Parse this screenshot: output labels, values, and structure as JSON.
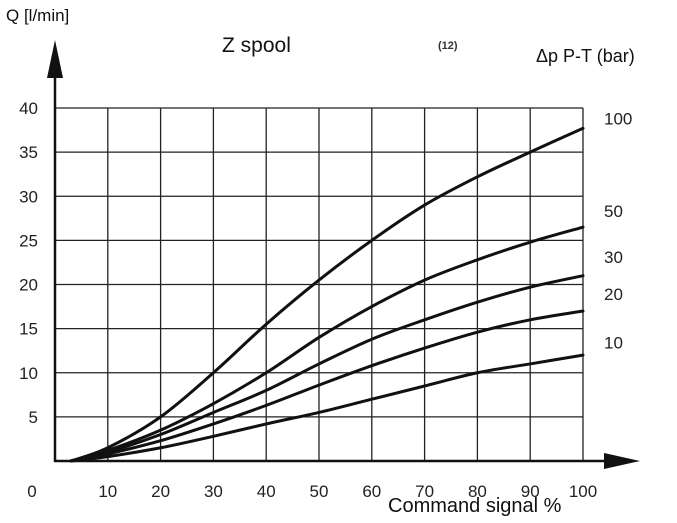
{
  "chart_data": {
    "type": "line",
    "title": "Z spool",
    "figure_number": "(12)",
    "xlabel": "Command signal %",
    "ylabel": "Q [l/min]",
    "legend_title": "Δp P-T (bar)",
    "xlim": [
      0,
      100
    ],
    "ylim": [
      0,
      40
    ],
    "grid": true,
    "x_ticks": [
      "0",
      "10",
      "20",
      "30",
      "40",
      "50",
      "60",
      "70",
      "80",
      "90",
      "100"
    ],
    "y_ticks": [
      "5",
      "10",
      "15",
      "20",
      "25",
      "30",
      "35",
      "40"
    ],
    "series": [
      {
        "name": "100",
        "x": [
          3,
          10,
          20,
          30,
          40,
          50,
          60,
          70,
          80,
          90,
          100
        ],
        "y": [
          0,
          1.5,
          5,
          10,
          15.5,
          20.5,
          25,
          29,
          32.2,
          35,
          37.7
        ]
      },
      {
        "name": "50",
        "x": [
          3,
          10,
          20,
          30,
          40,
          50,
          60,
          70,
          80,
          90,
          100
        ],
        "y": [
          0,
          1.2,
          3.5,
          6.5,
          10,
          14,
          17.5,
          20.5,
          22.8,
          24.8,
          26.5
        ]
      },
      {
        "name": "30",
        "x": [
          3,
          10,
          20,
          30,
          40,
          50,
          60,
          70,
          80,
          90,
          100
        ],
        "y": [
          0,
          1,
          3,
          5.5,
          8,
          11,
          13.8,
          16,
          18,
          19.7,
          21
        ]
      },
      {
        "name": "20",
        "x": [
          3,
          10,
          20,
          30,
          40,
          50,
          60,
          70,
          80,
          90,
          100
        ],
        "y": [
          0,
          0.8,
          2.3,
          4.2,
          6.3,
          8.6,
          10.8,
          12.8,
          14.6,
          16,
          17
        ]
      },
      {
        "name": "10",
        "x": [
          3,
          10,
          20,
          30,
          40,
          50,
          60,
          70,
          80,
          90,
          100
        ],
        "y": [
          0,
          0.5,
          1.5,
          2.8,
          4.2,
          5.5,
          7,
          8.5,
          10,
          11,
          12
        ]
      }
    ]
  }
}
